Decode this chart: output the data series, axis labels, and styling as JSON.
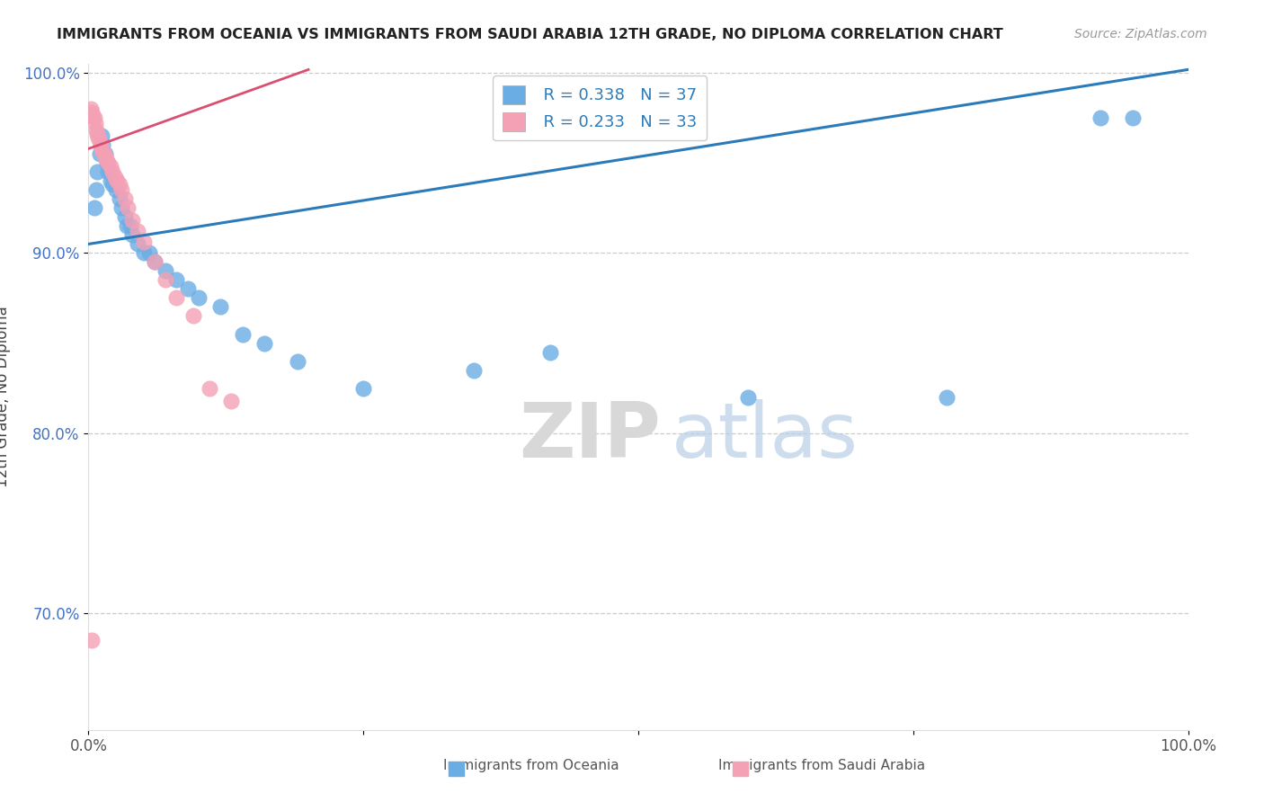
{
  "title": "IMMIGRANTS FROM OCEANIA VS IMMIGRANTS FROM SAUDI ARABIA 12TH GRADE, NO DIPLOMA CORRELATION CHART",
  "source": "Source: ZipAtlas.com",
  "ylabel": "12th Grade, No Diploma",
  "legend_label_blue": "Immigrants from Oceania",
  "legend_label_pink": "Immigrants from Saudi Arabia",
  "R_blue": 0.338,
  "N_blue": 37,
  "R_pink": 0.233,
  "N_pink": 33,
  "color_blue": "#6aade4",
  "color_pink": "#f4a0b5",
  "trendline_blue": "#2b7bba",
  "trendline_pink": "#d94f70",
  "xlim": [
    0.0,
    1.0
  ],
  "ylim": [
    0.635,
    1.005
  ],
  "x_ticks": [
    0.0,
    0.25,
    0.5,
    0.75,
    1.0
  ],
  "y_ticks": [
    0.7,
    0.8,
    0.9,
    1.0
  ],
  "y_tick_labels": [
    "70.0%",
    "80.0%",
    "90.0%",
    "100.0%"
  ],
  "grid_color": "#cccccc",
  "background_color": "#ffffff",
  "watermark_zip": "ZIP",
  "watermark_atlas": "atlas",
  "blue_x": [
    0.005,
    0.007,
    0.008,
    0.01,
    0.012,
    0.013,
    0.015,
    0.017,
    0.018,
    0.02,
    0.022,
    0.025,
    0.028,
    0.03,
    0.033,
    0.035,
    0.038,
    0.04,
    0.045,
    0.05,
    0.055,
    0.06,
    0.07,
    0.08,
    0.09,
    0.1,
    0.12,
    0.14,
    0.16,
    0.19,
    0.25,
    0.35,
    0.42,
    0.6,
    0.78,
    0.92,
    0.95
  ],
  "blue_y": [
    0.925,
    0.935,
    0.945,
    0.955,
    0.965,
    0.96,
    0.955,
    0.95,
    0.945,
    0.94,
    0.938,
    0.935,
    0.93,
    0.925,
    0.92,
    0.915,
    0.915,
    0.91,
    0.905,
    0.9,
    0.9,
    0.895,
    0.89,
    0.885,
    0.88,
    0.875,
    0.87,
    0.855,
    0.85,
    0.84,
    0.825,
    0.835,
    0.845,
    0.82,
    0.82,
    0.975,
    0.975
  ],
  "pink_x": [
    0.002,
    0.003,
    0.004,
    0.005,
    0.006,
    0.007,
    0.008,
    0.009,
    0.01,
    0.011,
    0.012,
    0.013,
    0.015,
    0.016,
    0.018,
    0.02,
    0.022,
    0.024,
    0.026,
    0.028,
    0.03,
    0.033,
    0.036,
    0.04,
    0.045,
    0.05,
    0.06,
    0.07,
    0.08,
    0.095,
    0.11,
    0.13,
    0.003
  ],
  "pink_y": [
    0.98,
    0.978,
    0.976,
    0.975,
    0.972,
    0.968,
    0.966,
    0.964,
    0.962,
    0.96,
    0.958,
    0.956,
    0.954,
    0.952,
    0.95,
    0.948,
    0.945,
    0.942,
    0.94,
    0.938,
    0.935,
    0.93,
    0.925,
    0.918,
    0.912,
    0.906,
    0.895,
    0.885,
    0.875,
    0.865,
    0.825,
    0.818,
    0.685
  ]
}
